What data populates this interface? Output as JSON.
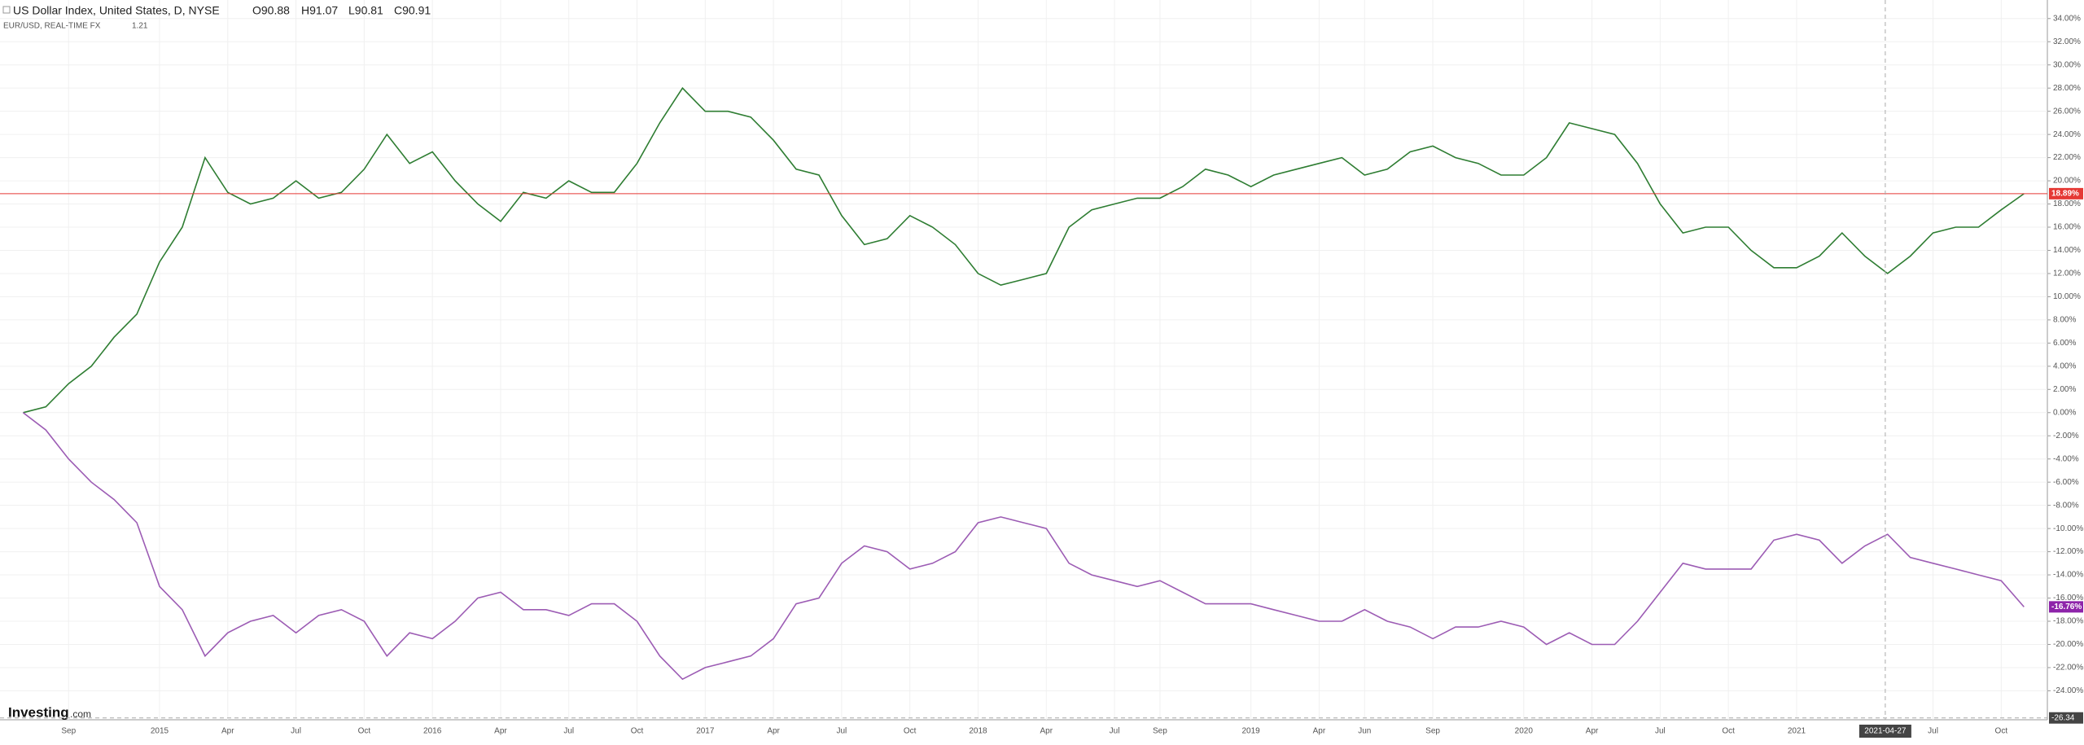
{
  "header": {
    "title": "US Dollar Index, United States, D, NYSE",
    "open": "O90.88",
    "high": "H91.07",
    "low": "L90.81",
    "close": "C90.91",
    "compare": "EUR/USD, REAL-TIME FX",
    "compare_value": "1.21"
  },
  "logo": {
    "name": "Investing",
    "suffix": ".com"
  },
  "crosshair": {
    "x_label": "2021-04-27",
    "y": -26.34
  },
  "chart_data": {
    "type": "line",
    "categories": [
      null,
      null,
      "Sep",
      null,
      null,
      null,
      "2015",
      null,
      null,
      "Apr",
      null,
      null,
      "Jul",
      null,
      null,
      "Oct",
      null,
      null,
      "2016",
      null,
      null,
      "Apr",
      null,
      null,
      "Jul",
      null,
      null,
      "Oct",
      null,
      null,
      "2017",
      null,
      null,
      "Apr",
      null,
      null,
      "Jul",
      null,
      null,
      "Oct",
      null,
      null,
      "2018",
      null,
      null,
      "Apr",
      null,
      null,
      "Jul",
      null,
      "Sep",
      null,
      null,
      null,
      "2019",
      null,
      null,
      "Apr",
      null,
      "Jun",
      null,
      null,
      "Sep",
      null,
      null,
      null,
      "2020",
      null,
      null,
      "Apr",
      null,
      null,
      "Jul",
      null,
      null,
      "Oct",
      null,
      null,
      "2021",
      null,
      null,
      null,
      null,
      null,
      "Jul",
      null,
      null,
      "Oct",
      null
    ],
    "series": [
      {
        "name": "US Dollar Index",
        "color": "#2e7d32",
        "values": [
          0,
          0.5,
          2.5,
          4,
          6.5,
          8.5,
          13,
          16,
          22,
          19,
          18,
          18.5,
          20,
          18.5,
          19,
          21,
          24,
          21.5,
          22.5,
          20,
          18,
          16.5,
          19,
          18.5,
          20,
          19,
          19,
          21.5,
          25,
          28,
          26,
          26,
          25.5,
          23.5,
          21,
          20.5,
          17,
          14.5,
          15,
          17,
          16,
          14.5,
          12,
          11,
          11.5,
          12,
          16,
          17.5,
          18,
          18.5,
          18.5,
          19.5,
          21,
          20.5,
          19.5,
          20.5,
          21,
          21.5,
          22,
          20.5,
          21,
          22.5,
          23,
          22,
          21.5,
          20.5,
          20.5,
          22,
          25,
          24.5,
          24,
          21.5,
          18,
          15.5,
          16,
          16,
          14,
          12.5,
          12.5,
          13.5,
          15.5,
          13.5,
          12,
          13.5,
          15.5,
          16,
          16,
          17.5,
          18.89
        ],
        "value_labels": [
          null,
          null,
          null,
          null,
          null,
          null,
          null,
          null,
          null,
          null,
          null,
          null,
          null,
          null,
          null,
          null,
          null,
          null,
          null,
          null,
          null,
          null,
          null,
          null,
          null,
          null,
          null,
          null,
          null,
          null,
          null,
          null,
          null,
          null,
          null,
          null,
          null,
          null,
          null,
          null,
          null,
          null,
          null,
          null,
          null,
          null,
          null,
          null,
          null,
          null,
          null,
          null,
          null,
          null,
          null,
          null,
          null,
          null,
          null,
          null,
          null,
          null,
          null,
          null,
          null,
          null,
          null,
          null,
          null,
          null,
          null,
          null,
          null,
          null,
          null,
          null,
          null,
          null,
          null,
          null,
          null,
          null,
          null,
          null,
          null,
          null,
          null,
          null,
          "18.89%"
        ],
        "label_color": "#e53935"
      },
      {
        "name": "EUR/USD",
        "color": "#9c5cb4",
        "values": [
          0,
          -1.5,
          -4,
          -6,
          -7.5,
          -9.5,
          -15,
          -17,
          -21,
          -19,
          -18,
          -17.5,
          -19,
          -17.5,
          -17,
          -18,
          -21,
          -19,
          -19.5,
          -18,
          -16,
          -15.5,
          -17,
          -17,
          -17.5,
          -16.5,
          -16.5,
          -18,
          -21,
          -23,
          -22,
          -21.5,
          -21,
          -19.5,
          -16.5,
          -16,
          -13,
          -11.5,
          -12,
          -13.5,
          -13,
          -12,
          -9.5,
          -9,
          -9.5,
          -10,
          -13,
          -14,
          -14.5,
          -15,
          -14.5,
          -15.5,
          -16.5,
          -16.5,
          -16.5,
          -17,
          -17.5,
          -18,
          -18,
          -17,
          -18,
          -18.5,
          -19.5,
          -18.5,
          -18.5,
          -18,
          -18.5,
          -20,
          -19,
          -20,
          -20,
          -18,
          -15.5,
          -13,
          -13.5,
          -13.5,
          -13.5,
          -11,
          -10.5,
          -11,
          -13,
          -11.5,
          -10.5,
          -12.5,
          -13,
          -13.5,
          -14,
          -14.5,
          -16.76
        ],
        "value_labels": [
          null,
          null,
          null,
          null,
          null,
          null,
          null,
          null,
          null,
          null,
          null,
          null,
          null,
          null,
          null,
          null,
          null,
          null,
          null,
          null,
          null,
          null,
          null,
          null,
          null,
          null,
          null,
          null,
          null,
          null,
          null,
          null,
          null,
          null,
          null,
          null,
          null,
          null,
          null,
          null,
          null,
          null,
          null,
          null,
          null,
          null,
          null,
          null,
          null,
          null,
          null,
          null,
          null,
          null,
          null,
          null,
          null,
          null,
          null,
          null,
          null,
          null,
          null,
          null,
          null,
          null,
          null,
          null,
          null,
          null,
          null,
          null,
          null,
          null,
          null,
          null,
          null,
          null,
          null,
          null,
          null,
          null,
          null,
          null,
          null,
          null,
          null,
          null,
          "-16.76%"
        ],
        "label_color": "#8e24aa"
      }
    ],
    "ylim": [
      -26.5,
      35.6
    ],
    "yticks": [
      {
        "value": -24,
        "label": "-24.00%"
      },
      {
        "value": -22,
        "label": "-22.00%"
      },
      {
        "value": -20,
        "label": "-20.00%"
      },
      {
        "value": -18,
        "label": "-18.00%"
      },
      {
        "value": -16,
        "label": "-16.00%"
      },
      {
        "value": -14,
        "label": "-14.00%"
      },
      {
        "value": -12,
        "label": "-12.00%"
      },
      {
        "value": -10,
        "label": "-10.00%"
      },
      {
        "value": -8,
        "label": "-8.00%"
      },
      {
        "value": -6,
        "label": "-6.00%"
      },
      {
        "value": -4,
        "label": "-4.00%"
      },
      {
        "value": -2,
        "label": "-2.00%"
      },
      {
        "value": 0,
        "label": "0.00%"
      },
      {
        "value": 2,
        "label": "2.00%"
      },
      {
        "value": 4,
        "label": "4.00%"
      },
      {
        "value": 6,
        "label": "6.00%"
      },
      {
        "value": 8,
        "label": "8.00%"
      },
      {
        "value": 10,
        "label": "10.00%"
      },
      {
        "value": 12,
        "label": "12.00%"
      },
      {
        "value": 14,
        "label": "14.00%"
      },
      {
        "value": 16,
        "label": "16.00%"
      },
      {
        "value": 18,
        "label": "18.00%"
      },
      {
        "value": 20,
        "label": "20.00%"
      },
      {
        "value": 22,
        "label": "22.00%"
      },
      {
        "value": 24,
        "label": "24.00%"
      },
      {
        "value": 26,
        "label": "26.00%"
      },
      {
        "value": 28,
        "label": "28.00%"
      },
      {
        "value": 30,
        "label": "30.00%"
      },
      {
        "value": 32,
        "label": "32.00%"
      },
      {
        "value": 34,
        "label": "34.00%"
      }
    ],
    "grid": true
  }
}
